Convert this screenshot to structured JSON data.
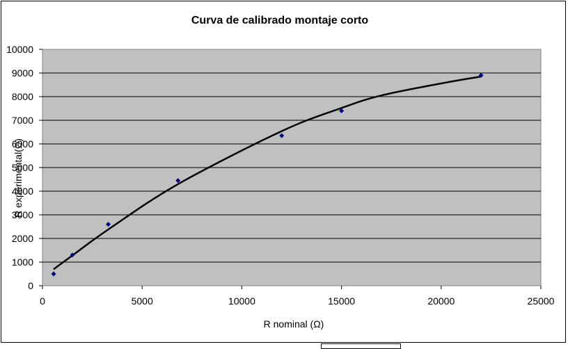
{
  "chart_data": {
    "type": "scatter",
    "title": "Curva de calibrado montaje corto",
    "xlabel": "R nominal (Ω)",
    "ylabel": "R experimental(Ω)",
    "xlim": [
      0,
      25000
    ],
    "ylim": [
      0,
      10000
    ],
    "xticks": [
      0,
      5000,
      10000,
      15000,
      20000,
      25000
    ],
    "yticks": [
      0,
      1000,
      2000,
      3000,
      4000,
      5000,
      6000,
      7000,
      8000,
      9000,
      10000
    ],
    "grid": true,
    "legend": "none",
    "series": [
      {
        "kind": "markers",
        "color": "#000080",
        "x": [
          560,
          1500,
          3300,
          6800,
          12000,
          15000,
          22000
        ],
        "y": [
          500,
          1300,
          2600,
          4450,
          6350,
          7400,
          8900
        ]
      },
      {
        "kind": "trendline",
        "color": "#000000",
        "x": [
          560,
          1500,
          3300,
          6800,
          12000,
          15000,
          17000,
          20000,
          22000
        ],
        "y": [
          700,
          1280,
          2380,
          4300,
          6540,
          7520,
          8050,
          8560,
          8850
        ]
      }
    ],
    "colors": {
      "plot_background": "#C0C0C0",
      "gridline": "#000000"
    }
  }
}
